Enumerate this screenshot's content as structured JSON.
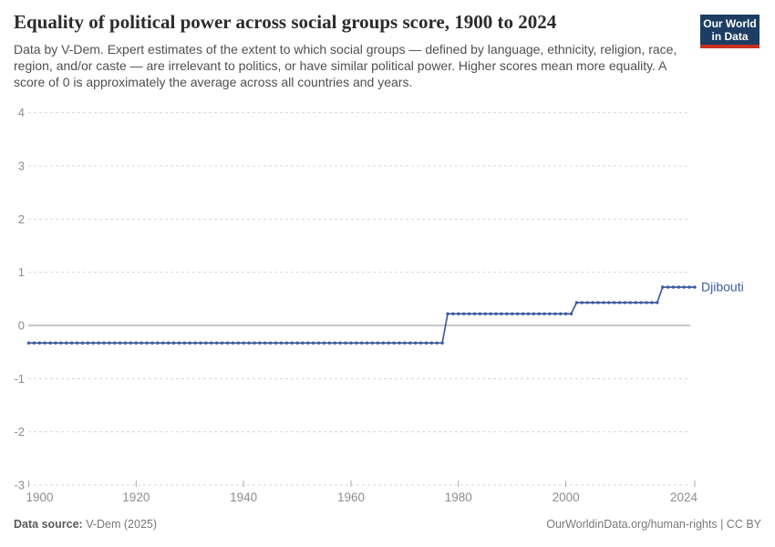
{
  "header": {
    "title": "Equality of political power across social groups score, 1900 to 2024",
    "subtitle": "Data by V-Dem. Expert estimates of the extent to which social groups — defined by language, ethnicity, religion, race, region, and/or caste — are irrelevant to politics, or have similar political power. Higher scores mean more equality. A score of 0 is approximately the average across all countries and years.",
    "logo": {
      "line1": "Our World",
      "line2": "in Data",
      "bg_color": "#1d3d63",
      "accent_color": "#c7311f"
    }
  },
  "chart_data": {
    "type": "line",
    "title": "Equality of political power across social groups score, 1900 to 2024",
    "entity_label": "Djibouti",
    "line_color": "#3d5c9e",
    "x_ticks": [
      1900,
      1920,
      1940,
      1960,
      1980,
      2000,
      2024
    ],
    "y_ticks": [
      4,
      3,
      2,
      1,
      0,
      -1,
      -2,
      -3
    ],
    "xlim": [
      1900,
      2024
    ],
    "ylim": [
      -3,
      4
    ],
    "grid": "horizontal-dashed",
    "legend_position": "end-of-line",
    "series": [
      {
        "name": "Djibouti",
        "segments": [
          {
            "start_year": 1900,
            "end_year": 1977,
            "value": -0.33
          },
          {
            "start_year": 1978,
            "end_year": 2001,
            "value": 0.22
          },
          {
            "start_year": 2002,
            "end_year": 2017,
            "value": 0.43
          },
          {
            "start_year": 2018,
            "end_year": 2024,
            "value": 0.72
          }
        ]
      }
    ],
    "colors": {
      "gridline": "#d8d8d8",
      "zero_line": "#8f8f8f",
      "tick": "#a8a8a8",
      "axis_label": "#8d8d8d"
    }
  },
  "footer": {
    "source_label": "Data source:",
    "source_value": " V-Dem (2025)",
    "license": "OurWorldinData.org/human-rights | CC BY"
  }
}
